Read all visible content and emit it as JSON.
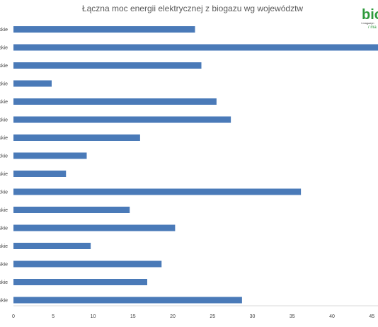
{
  "chart_data": {
    "type": "bar",
    "orientation": "horizontal",
    "title": "Łączna moc energii elektrycznej z biogazu wg województw",
    "categories": [
      "skie",
      "skie",
      "skie",
      "skie",
      "skie",
      "skie",
      "skie",
      "ckie",
      "skie",
      "ckie",
      "skie",
      "skie",
      "skie",
      "skie",
      "skie",
      "skie"
    ],
    "values": [
      22.8,
      46.5,
      23.6,
      4.8,
      25.5,
      27.3,
      15.9,
      9.2,
      6.6,
      36.1,
      14.6,
      20.3,
      9.7,
      18.6,
      16.8,
      28.7
    ],
    "xlim": [
      0,
      45
    ],
    "x_ticks": [
      "0",
      "5",
      "10",
      "15",
      "20",
      "25",
      "30",
      "35",
      "40",
      "45"
    ],
    "grid": false,
    "bar_color": "#4a7ab8"
  },
  "logo": {
    "main": "bio",
    "line1": "/ magazyn",
    "line2": "/ ma"
  }
}
